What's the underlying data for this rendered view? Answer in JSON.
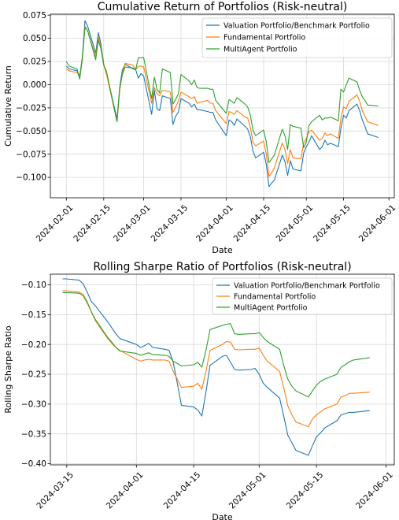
{
  "chart_data": [
    {
      "type": "line",
      "title": "Cumulative Return of Portfolios (Risk-neutral)",
      "xlabel": "Date",
      "ylabel": "Cumulative Return",
      "grid": true,
      "legend_position": "top-right",
      "xlim": [
        "2024-01-26",
        "2024-06-03"
      ],
      "ylim": [
        -0.122,
        0.076
      ],
      "x_ticks": [
        "2024-02-01",
        "2024-02-15",
        "2024-03-01",
        "2024-03-15",
        "2024-04-01",
        "2024-04-15",
        "2024-05-01",
        "2024-05-15",
        "2024-06-01"
      ],
      "y_ticks": [
        0.075,
        0.05,
        0.025,
        0.0,
        -0.025,
        -0.05,
        -0.075,
        -0.1
      ],
      "y_tick_labels": [
        "0.075",
        "0.050",
        "0.025",
        "0.000",
        "−0.025",
        "−0.050",
        "−0.075",
        "−0.100"
      ],
      "x": [
        "2024-02-01",
        "2024-02-02",
        "2024-02-05",
        "2024-02-06",
        "2024-02-07",
        "2024-02-08",
        "2024-02-09",
        "2024-02-12",
        "2024-02-13",
        "2024-02-14",
        "2024-02-15",
        "2024-02-16",
        "2024-02-20",
        "2024-02-21",
        "2024-02-22",
        "2024-02-23",
        "2024-02-26",
        "2024-02-27",
        "2024-02-28",
        "2024-02-29",
        "2024-03-01",
        "2024-03-04",
        "2024-03-05",
        "2024-03-06",
        "2024-03-07",
        "2024-03-08",
        "2024-03-11",
        "2024-03-12",
        "2024-03-13",
        "2024-03-14",
        "2024-03-15",
        "2024-03-18",
        "2024-03-19",
        "2024-03-20",
        "2024-03-21",
        "2024-03-22",
        "2024-03-25",
        "2024-03-26",
        "2024-03-27",
        "2024-03-28",
        "2024-04-01",
        "2024-04-02",
        "2024-04-03",
        "2024-04-04",
        "2024-04-05",
        "2024-04-08",
        "2024-04-09",
        "2024-04-10",
        "2024-04-11",
        "2024-04-12",
        "2024-04-15",
        "2024-04-16",
        "2024-04-17",
        "2024-04-18",
        "2024-04-19",
        "2024-04-22",
        "2024-04-23",
        "2024-04-24",
        "2024-04-25",
        "2024-04-26",
        "2024-04-29",
        "2024-04-30",
        "2024-05-01",
        "2024-05-02",
        "2024-05-03",
        "2024-05-06",
        "2024-05-07",
        "2024-05-08",
        "2024-05-09",
        "2024-05-10",
        "2024-05-13",
        "2024-05-14",
        "2024-05-15",
        "2024-05-16",
        "2024-05-17",
        "2024-05-20",
        "2024-05-21",
        "2024-05-22",
        "2024-05-23",
        "2024-05-24",
        "2024-05-28"
      ],
      "series": [
        {
          "name": "Valuation Portfolio/Benchmark Portfolio",
          "color": "#1f77b4",
          "values": [
            0.02,
            0.017,
            0.015,
            0.009,
            0.03,
            0.069,
            0.063,
            0.034,
            0.056,
            0.043,
            0.022,
            0.013,
            -0.037,
            -0.003,
            0.016,
            0.022,
            0.017,
            0.016,
            0.007,
            0.012,
            0.009,
            -0.032,
            -0.006,
            -0.026,
            -0.028,
            -0.012,
            -0.015,
            -0.043,
            -0.034,
            -0.03,
            -0.015,
            -0.02,
            -0.024,
            -0.021,
            -0.027,
            -0.027,
            -0.029,
            -0.03,
            -0.03,
            -0.038,
            -0.055,
            -0.038,
            -0.04,
            -0.044,
            -0.037,
            -0.045,
            -0.048,
            -0.056,
            -0.072,
            -0.079,
            -0.073,
            -0.086,
            -0.11,
            -0.106,
            -0.103,
            -0.076,
            -0.083,
            -0.098,
            -0.082,
            -0.091,
            -0.093,
            -0.074,
            -0.067,
            -0.062,
            -0.055,
            -0.07,
            -0.067,
            -0.06,
            -0.065,
            -0.063,
            -0.067,
            -0.047,
            -0.033,
            -0.036,
            -0.028,
            -0.021,
            -0.028,
            -0.038,
            -0.045,
            -0.053,
            -0.057
          ]
        },
        {
          "name": "Fundamental Portfolio",
          "color": "#ff7f0e",
          "values": [
            0.017,
            0.015,
            0.013,
            0.008,
            0.027,
            0.063,
            0.058,
            0.03,
            0.051,
            0.04,
            0.021,
            0.012,
            -0.04,
            -0.006,
            0.012,
            0.023,
            0.021,
            0.016,
            0.02,
            0.02,
            0.019,
            -0.02,
            -0.003,
            -0.01,
            -0.012,
            -0.006,
            -0.008,
            -0.03,
            -0.024,
            -0.018,
            -0.008,
            -0.013,
            -0.015,
            -0.013,
            -0.02,
            -0.019,
            -0.017,
            -0.02,
            -0.02,
            -0.028,
            -0.042,
            -0.029,
            -0.03,
            -0.032,
            -0.028,
            -0.035,
            -0.036,
            -0.046,
            -0.062,
            -0.066,
            -0.061,
            -0.075,
            -0.099,
            -0.095,
            -0.09,
            -0.063,
            -0.07,
            -0.085,
            -0.07,
            -0.079,
            -0.08,
            -0.063,
            -0.058,
            -0.051,
            -0.049,
            -0.06,
            -0.058,
            -0.052,
            -0.055,
            -0.053,
            -0.058,
            -0.036,
            -0.024,
            -0.026,
            -0.018,
            -0.011,
            -0.018,
            -0.028,
            -0.034,
            -0.04,
            -0.044
          ]
        },
        {
          "name": "MultiAgent Portfolio",
          "color": "#2ca02c",
          "values": [
            0.025,
            0.02,
            0.017,
            0.006,
            0.029,
            0.062,
            0.058,
            0.027,
            0.048,
            0.038,
            0.021,
            0.015,
            -0.04,
            -0.004,
            0.011,
            0.019,
            0.018,
            0.016,
            0.029,
            0.029,
            0.029,
            -0.015,
            0.008,
            -0.005,
            -0.009,
            0.017,
            0.013,
            -0.021,
            -0.016,
            -0.01,
            0.011,
            0.004,
            0.0,
            0.005,
            -0.003,
            -0.004,
            -0.004,
            -0.005,
            -0.005,
            -0.017,
            -0.031,
            -0.016,
            -0.018,
            -0.02,
            -0.014,
            -0.021,
            -0.024,
            -0.033,
            -0.049,
            -0.055,
            -0.049,
            -0.062,
            -0.084,
            -0.08,
            -0.076,
            -0.048,
            -0.055,
            -0.07,
            -0.043,
            -0.045,
            -0.047,
            -0.068,
            -0.062,
            -0.044,
            -0.04,
            -0.033,
            -0.038,
            -0.036,
            -0.036,
            -0.035,
            -0.039,
            -0.005,
            -0.008,
            0.0,
            0.007,
            0.003,
            -0.006,
            -0.013,
            -0.017,
            -0.022,
            -0.023
          ]
        }
      ]
    },
    {
      "type": "line",
      "title": "Rolling Sharpe Ratio of Portfolios (Risk-neutral)",
      "xlabel": "Date",
      "ylabel": "Rolling Sharpe Ratio",
      "grid": true,
      "legend_position": "top-right",
      "xlim": [
        "2024-03-11",
        "2024-06-03"
      ],
      "ylim": [
        -0.402,
        -0.082
      ],
      "x_ticks": [
        "2024-03-15",
        "2024-04-01",
        "2024-04-15",
        "2024-05-01",
        "2024-05-15",
        "2024-06-01"
      ],
      "y_ticks": [
        -0.1,
        -0.15,
        -0.2,
        -0.25,
        -0.3,
        -0.35,
        -0.4
      ],
      "y_tick_labels": [
        "−0.10",
        "−0.15",
        "−0.20",
        "−0.25",
        "−0.30",
        "−0.35",
        "−0.40"
      ],
      "x": [
        "2024-03-14",
        "2024-03-15",
        "2024-03-18",
        "2024-03-19",
        "2024-03-20",
        "2024-03-21",
        "2024-03-22",
        "2024-03-25",
        "2024-03-26",
        "2024-03-27",
        "2024-03-28",
        "2024-04-01",
        "2024-04-02",
        "2024-04-03",
        "2024-04-04",
        "2024-04-05",
        "2024-04-08",
        "2024-04-09",
        "2024-04-10",
        "2024-04-11",
        "2024-04-12",
        "2024-04-15",
        "2024-04-16",
        "2024-04-17",
        "2024-04-18",
        "2024-04-19",
        "2024-04-22",
        "2024-04-23",
        "2024-04-24",
        "2024-04-25",
        "2024-04-26",
        "2024-04-29",
        "2024-04-30",
        "2024-05-01",
        "2024-05-02",
        "2024-05-03",
        "2024-05-06",
        "2024-05-07",
        "2024-05-08",
        "2024-05-09",
        "2024-05-10",
        "2024-05-13",
        "2024-05-14",
        "2024-05-15",
        "2024-05-16",
        "2024-05-17",
        "2024-05-20",
        "2024-05-21",
        "2024-05-22",
        "2024-05-23",
        "2024-05-24",
        "2024-05-28"
      ],
      "series": [
        {
          "name": "Valuation Portfolio/Benchmark Portfolio",
          "color": "#1f77b4",
          "values": [
            -0.09,
            -0.09,
            -0.092,
            -0.098,
            -0.112,
            -0.128,
            -0.135,
            -0.162,
            -0.172,
            -0.182,
            -0.19,
            -0.2,
            -0.205,
            -0.202,
            -0.198,
            -0.205,
            -0.208,
            -0.21,
            -0.23,
            -0.265,
            -0.302,
            -0.305,
            -0.31,
            -0.32,
            -0.28,
            -0.235,
            -0.22,
            -0.218,
            -0.23,
            -0.242,
            -0.243,
            -0.242,
            -0.24,
            -0.25,
            -0.265,
            -0.272,
            -0.29,
            -0.32,
            -0.352,
            -0.365,
            -0.378,
            -0.386,
            -0.37,
            -0.355,
            -0.348,
            -0.34,
            -0.328,
            -0.318,
            -0.316,
            -0.314,
            -0.314,
            -0.311
          ]
        },
        {
          "name": "Fundamental Portfolio",
          "color": "#ff7f0e",
          "values": [
            -0.11,
            -0.11,
            -0.112,
            -0.116,
            -0.128,
            -0.145,
            -0.16,
            -0.19,
            -0.198,
            -0.205,
            -0.21,
            -0.225,
            -0.228,
            -0.226,
            -0.225,
            -0.226,
            -0.226,
            -0.228,
            -0.245,
            -0.258,
            -0.272,
            -0.27,
            -0.265,
            -0.275,
            -0.245,
            -0.21,
            -0.2,
            -0.195,
            -0.196,
            -0.208,
            -0.209,
            -0.208,
            -0.208,
            -0.206,
            -0.218,
            -0.228,
            -0.245,
            -0.272,
            -0.303,
            -0.318,
            -0.33,
            -0.338,
            -0.325,
            -0.318,
            -0.313,
            -0.308,
            -0.3,
            -0.288,
            -0.286,
            -0.282,
            -0.282,
            -0.28
          ]
        },
        {
          "name": "MultiAgent Portfolio",
          "color": "#2ca02c",
          "values": [
            -0.113,
            -0.113,
            -0.114,
            -0.118,
            -0.13,
            -0.145,
            -0.158,
            -0.188,
            -0.196,
            -0.205,
            -0.211,
            -0.215,
            -0.218,
            -0.216,
            -0.214,
            -0.217,
            -0.218,
            -0.22,
            -0.228,
            -0.232,
            -0.236,
            -0.234,
            -0.23,
            -0.238,
            -0.21,
            -0.175,
            -0.168,
            -0.166,
            -0.165,
            -0.182,
            -0.183,
            -0.182,
            -0.182,
            -0.18,
            -0.188,
            -0.195,
            -0.208,
            -0.235,
            -0.258,
            -0.27,
            -0.278,
            -0.288,
            -0.278,
            -0.268,
            -0.262,
            -0.258,
            -0.25,
            -0.238,
            -0.234,
            -0.229,
            -0.226,
            -0.222
          ]
        }
      ]
    }
  ]
}
